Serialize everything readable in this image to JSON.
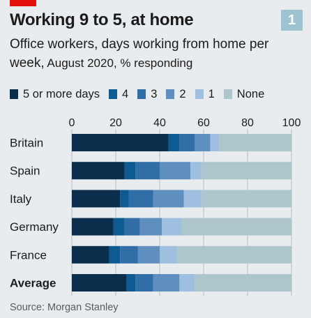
{
  "header": {
    "title": "Working 9 to 5, at home",
    "subtitle_main": "Office workers, days working from home per week,",
    "subtitle_note": " August 2020, % responding",
    "badge": "1"
  },
  "source": "Source: Morgan Stanley",
  "colors": {
    "background": "#e9ecee",
    "accent_red": "#e3120b",
    "badge": "#9cc3cf"
  },
  "chart_data": {
    "type": "bar",
    "orientation": "horizontal",
    "stacked": true,
    "xlim": [
      0,
      100
    ],
    "xticks": [
      0,
      20,
      40,
      60,
      80,
      100
    ],
    "grid": true,
    "legend_position": "top",
    "categories": [
      "Britain",
      "Spain",
      "Italy",
      "Germany",
      "France",
      "Average"
    ],
    "category_bold": [
      false,
      false,
      false,
      false,
      false,
      true
    ],
    "series": [
      {
        "name": "5 or more days",
        "color": "#0b2e4c",
        "values": [
          44,
          24,
          22,
          19,
          17,
          25
        ]
      },
      {
        "name": "4",
        "color": "#0d5b92",
        "values": [
          5,
          5,
          4,
          5,
          5,
          4
        ]
      },
      {
        "name": "3",
        "color": "#2f6ea7",
        "values": [
          7,
          11,
          11,
          7,
          8,
          8
        ]
      },
      {
        "name": "2",
        "color": "#5f8fbe",
        "values": [
          7,
          14,
          14,
          10,
          10,
          12
        ]
      },
      {
        "name": "1",
        "color": "#9fbfe0",
        "values": [
          4,
          5,
          8,
          9,
          8,
          7
        ]
      },
      {
        "name": "None",
        "color": "#adc6cc",
        "values": [
          33,
          41,
          41,
          50,
          52,
          44
        ]
      }
    ]
  }
}
